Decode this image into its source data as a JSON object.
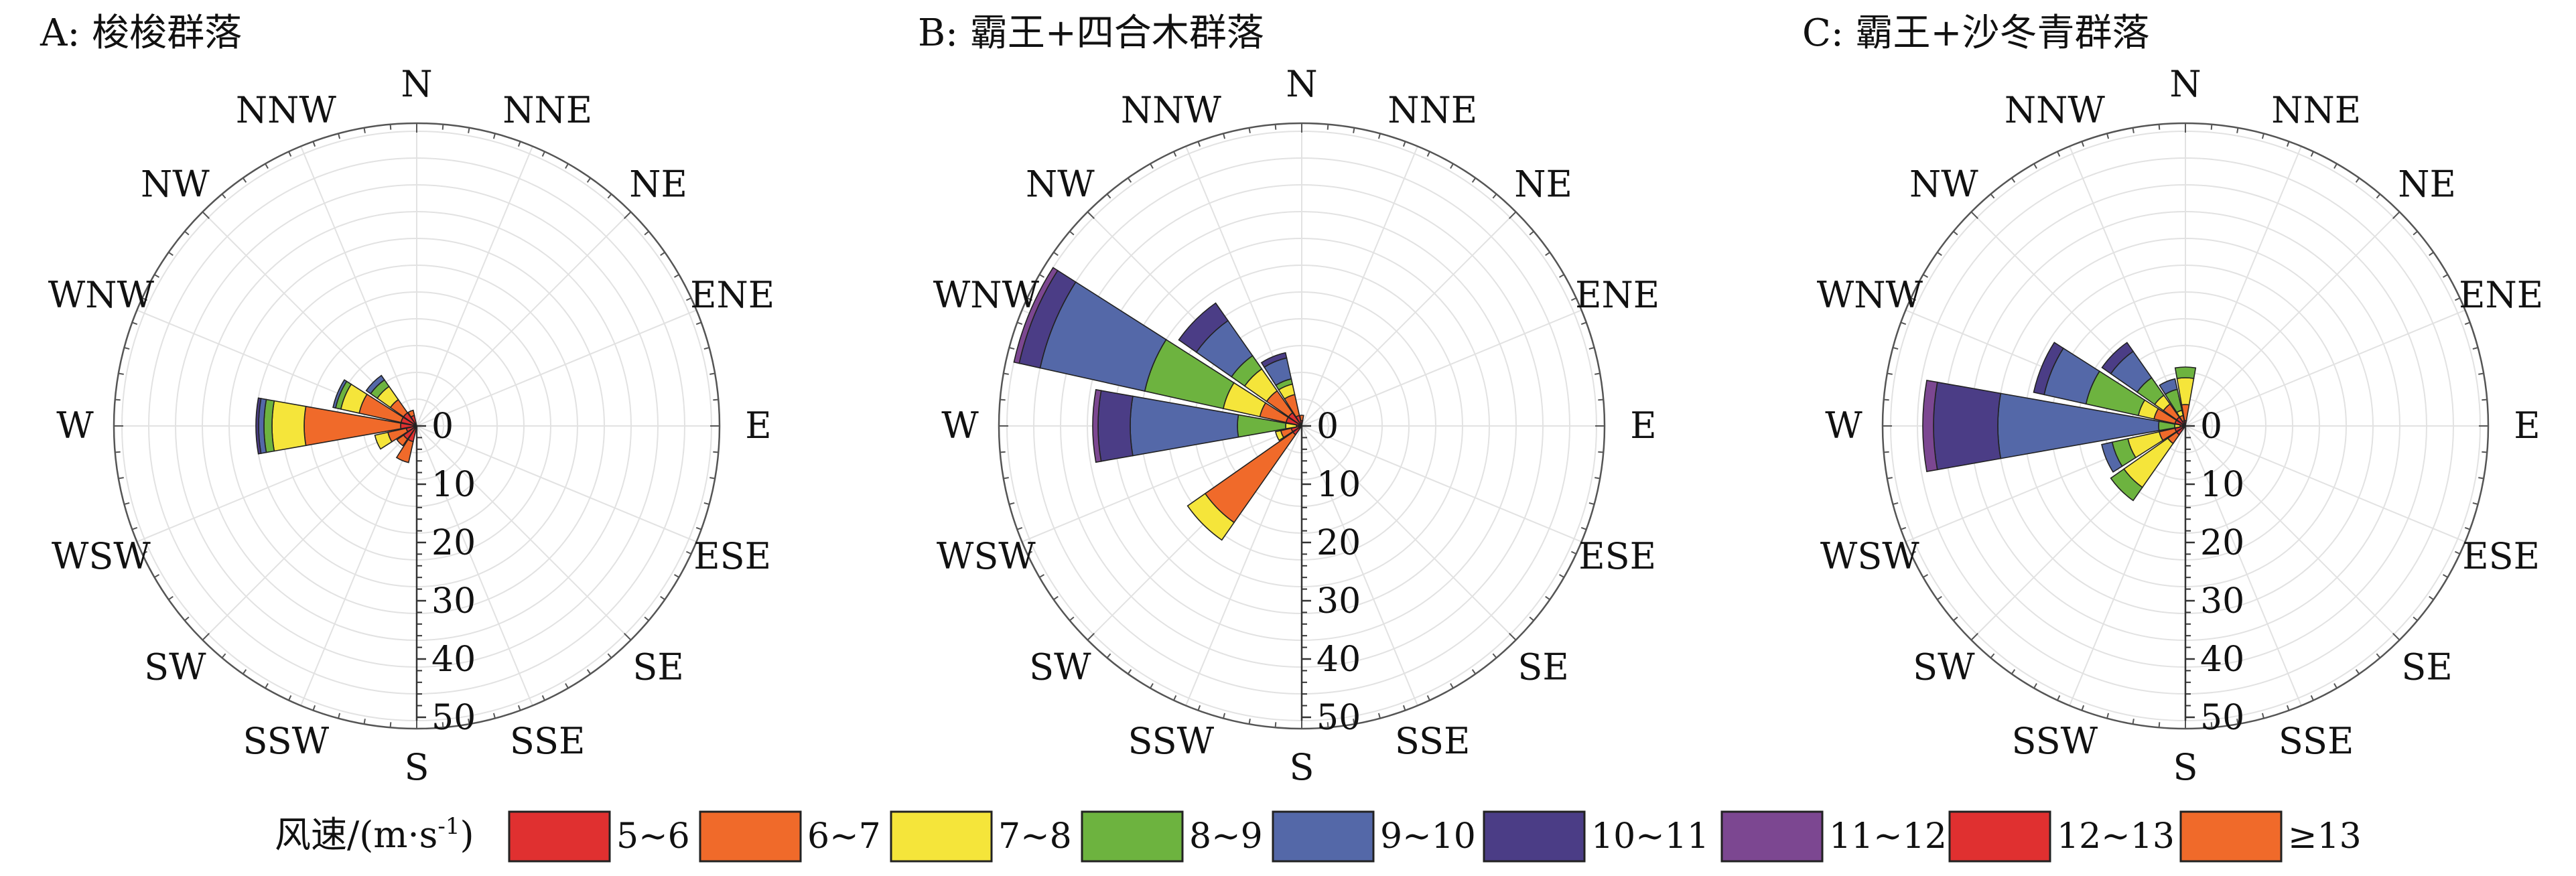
{
  "directions": [
    "N",
    "NNE",
    "NE",
    "ENE",
    "E",
    "ESE",
    "SE",
    "SSE",
    "S",
    "SSW",
    "SW",
    "WSW",
    "W",
    "WNW",
    "NW",
    "NNW"
  ],
  "radial_ticks": [
    0,
    10,
    20,
    30,
    40,
    50
  ],
  "legend": {
    "title": "风速/(m·s",
    "title_sup": "-1",
    "title_close": ")",
    "items": [
      {
        "label": "5~6",
        "color": "#e03030"
      },
      {
        "label": "6~7",
        "color": "#f06a2a"
      },
      {
        "label": "7~8",
        "color": "#f5e53a"
      },
      {
        "label": "8~9",
        "color": "#6db33f"
      },
      {
        "label": "9~10",
        "color": "#5468a8"
      },
      {
        "label": "10~11",
        "color": "#4b3d86"
      },
      {
        "label": "11~12",
        "color": "#7c4791"
      },
      {
        "label": "12~13",
        "color": "#e03030"
      },
      {
        "label": "≥13",
        "color": "#f06a2a"
      }
    ]
  },
  "chart_data": [
    {
      "type": "rose",
      "title": "A: 梭梭群落",
      "rlim": [
        0,
        55
      ],
      "sectors": [
        {
          "dir": "W",
          "values": [
            3,
            18,
            6,
            1.5,
            1,
            0.5
          ]
        },
        {
          "dir": "WSW",
          "values": [
            2,
            3.5,
            2.5
          ]
        },
        {
          "dir": "WNW",
          "values": [
            3,
            8,
            3.5,
            1,
            0.5
          ]
        },
        {
          "dir": "NW",
          "values": [
            3,
            3,
            3,
            1.5,
            1
          ]
        },
        {
          "dir": "NNW",
          "values": [
            2,
            1
          ]
        },
        {
          "dir": "SSW",
          "values": [
            3,
            4
          ]
        },
        {
          "dir": "SW",
          "values": [
            3,
            1.5
          ]
        }
      ]
    },
    {
      "type": "rose",
      "title": "B: 霸王+四合木群落",
      "rlim": [
        0,
        55
      ],
      "sectors": [
        {
          "dir": "W",
          "values": [
            0.5,
            0.5,
            2,
            9,
            20,
            6,
            1
          ]
        },
        {
          "dir": "WNW",
          "values": [
            3,
            5,
            7,
            15,
            20,
            4,
            1
          ]
        },
        {
          "dir": "NW",
          "values": [
            3,
            5,
            5,
            3,
            8,
            4
          ]
        },
        {
          "dir": "NNW",
          "values": [
            2,
            4,
            2,
            1,
            4,
            1
          ]
        },
        {
          "dir": "N",
          "values": [
            1,
            1
          ]
        },
        {
          "dir": "SW",
          "values": [
            2,
            20,
            4
          ]
        },
        {
          "dir": "WSW",
          "values": [
            2,
            2,
            1
          ]
        }
      ]
    },
    {
      "type": "rose",
      "title": "C: 霸王+沙冬青群落",
      "rlim": [
        0,
        55
      ],
      "sectors": [
        {
          "dir": "W",
          "values": [
            0.5,
            0.5,
            1,
            3,
            30,
            12,
            2
          ]
        },
        {
          "dir": "WNW",
          "values": [
            2,
            4,
            3,
            10,
            8,
            2
          ]
        },
        {
          "dir": "NW",
          "values": [
            2,
            3,
            2,
            4,
            6,
            2
          ]
        },
        {
          "dir": "NNW",
          "values": [
            1,
            1,
            1,
            4,
            2
          ]
        },
        {
          "dir": "N",
          "values": [
            1,
            3,
            5,
            2
          ]
        },
        {
          "dir": "SW",
          "values": [
            2,
            2,
            10,
            3
          ]
        },
        {
          "dir": "WSW",
          "values": [
            2,
            3,
            6,
            3,
            2
          ]
        }
      ]
    }
  ]
}
